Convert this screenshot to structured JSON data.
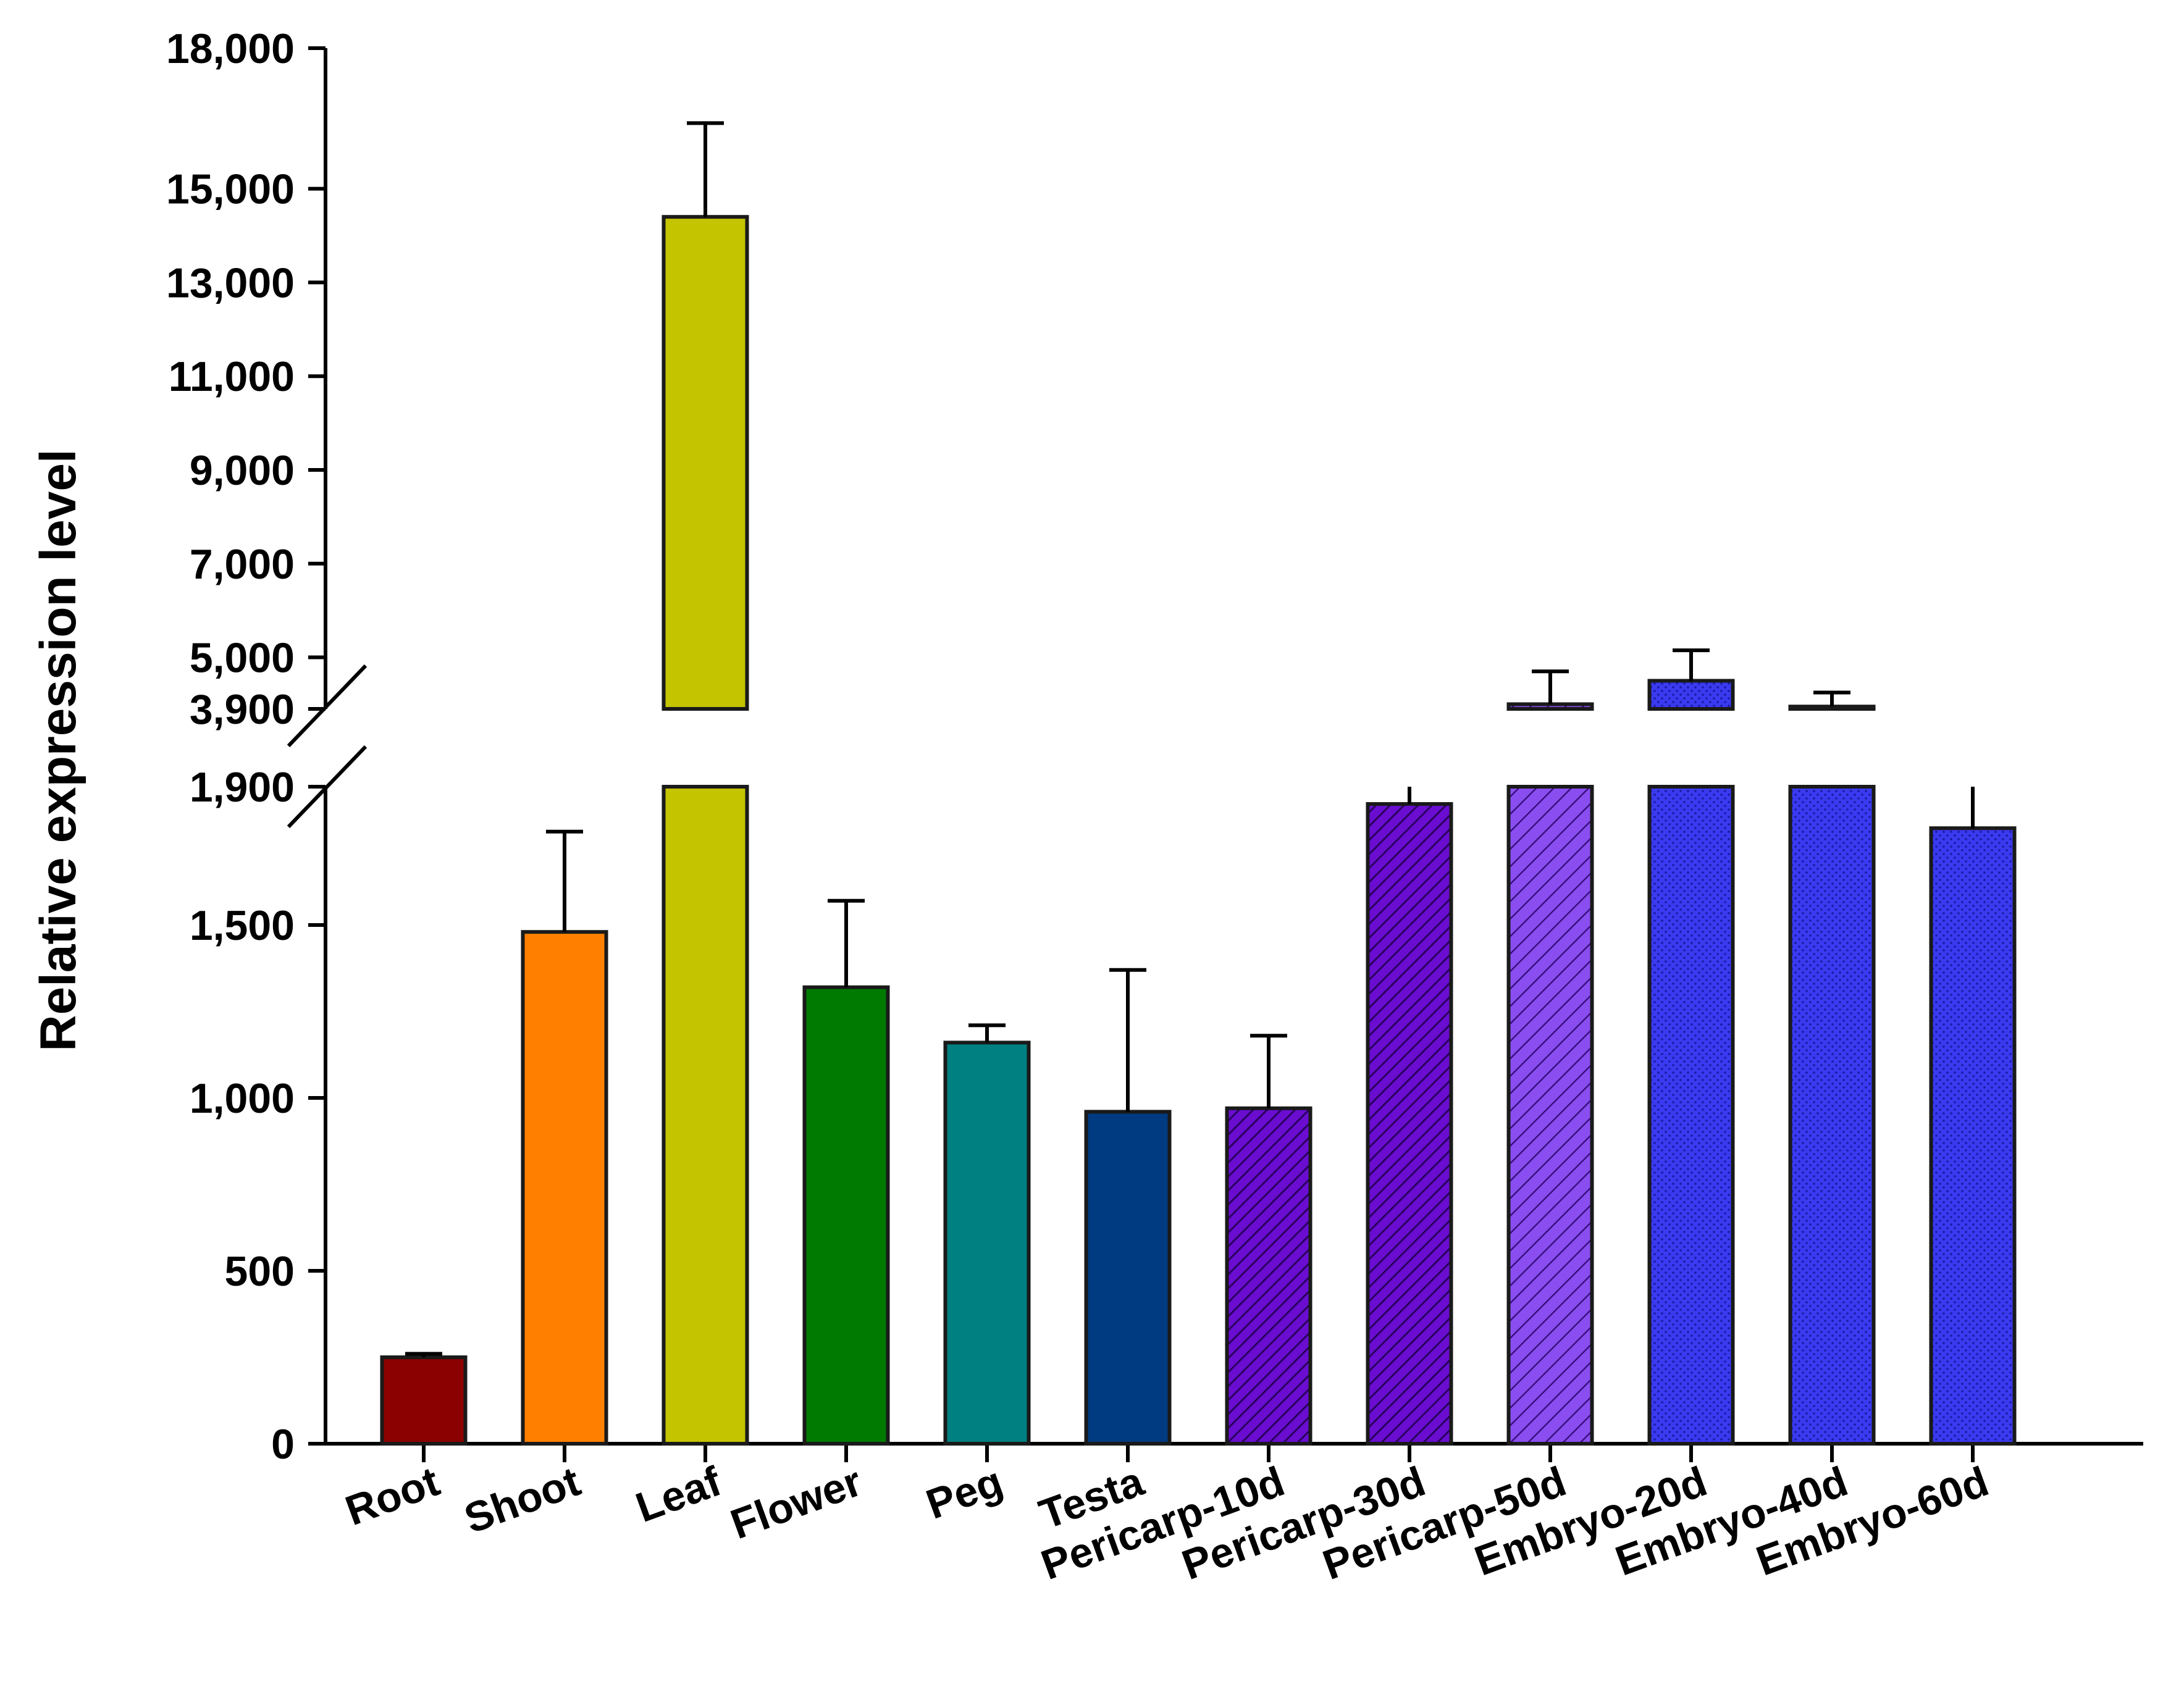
{
  "chart_data": {
    "type": "bar",
    "title": "",
    "xlabel": "",
    "ylabel": "Relative expression level",
    "categories": [
      "Root",
      "Shoot",
      "Leaf",
      "Flower",
      "Peg",
      "Testa",
      "Pericarp-10d",
      "Pericarp-30d",
      "Pericarp-50d",
      "Embryo-20d",
      "Embryo-40d",
      "Embryo-60d"
    ],
    "values": [
      250,
      1480,
      14400,
      1320,
      1160,
      960,
      970,
      1850,
      4000,
      4500,
      3950,
      1780
    ],
    "errors": [
      10,
      290,
      2000,
      250,
      50,
      410,
      210,
      80,
      700,
      650,
      300,
      150
    ],
    "fills": [
      "#8b0000",
      "#ff8000",
      "#c4c400",
      "#007a00",
      "#008080",
      "#003a80",
      "#6a0dd0",
      "#6a0dd0",
      "#7a3ee0",
      "#3a3af0",
      "#3a3af0",
      "#3a3af0"
    ],
    "patterns": [
      "solid",
      "solid",
      "solid",
      "solid",
      "solid",
      "solid",
      "hatch-dense",
      "hatch-dense",
      "hatch-light",
      "dots",
      "dots",
      "dots"
    ],
    "y_axis_segments": [
      {
        "range": [
          0,
          1900
        ],
        "ticks": [
          0,
          500,
          1000,
          1500,
          1900
        ],
        "tick_labels": [
          "0",
          "500",
          "1,000",
          "1,500",
          "1,900"
        ]
      },
      {
        "range": [
          3900,
          18000
        ],
        "ticks": [
          3900,
          5000,
          7000,
          9000,
          11000,
          13000,
          15000,
          18000
        ],
        "tick_labels": [
          "3,900",
          "5,000",
          "7,000",
          "9,000",
          "11,000",
          "13,000",
          "15,000",
          "18,000"
        ]
      }
    ],
    "axis_break": [
      1900,
      3900
    ],
    "grid": false,
    "legend": "none"
  }
}
